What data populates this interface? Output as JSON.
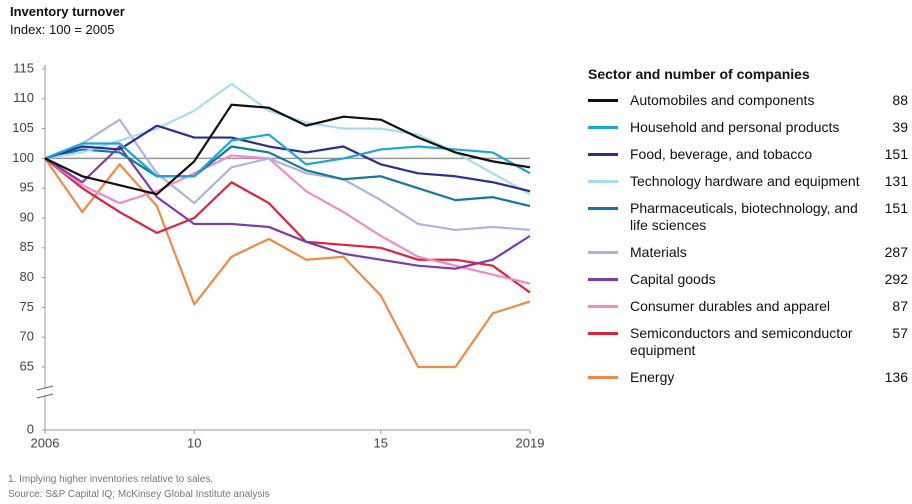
{
  "chart_data": {
    "type": "line",
    "title": "Inventory turnover",
    "subtitle": "Index: 100 = 2005",
    "legend_title": "Sector and number of companies",
    "x": [
      2006,
      2007,
      2008,
      2009,
      2010,
      2011,
      2012,
      2013,
      2014,
      2015,
      2016,
      2017,
      2018,
      2019
    ],
    "xlim": [
      2006,
      2019
    ],
    "xticks": [
      2006,
      {
        "value": 2010,
        "label": "10"
      },
      {
        "value": 2015,
        "label": "15"
      },
      2019
    ],
    "ylim": [
      0,
      115
    ],
    "axis_break": [
      0,
      65
    ],
    "yticks": [
      0,
      65,
      70,
      75,
      80,
      85,
      90,
      95,
      100,
      105,
      110,
      115
    ],
    "reference_line": 100,
    "series": [
      {
        "name": "Automobiles and components",
        "companies": "88",
        "color": "#111111",
        "values": [
          100,
          97,
          95.5,
          94,
          99.5,
          109,
          108.5,
          105.5,
          107,
          106.5,
          103.5,
          101,
          99.5,
          98.5
        ]
      },
      {
        "name": "Household and personal products",
        "companies": "39",
        "color": "#1aa6d9",
        "values": [
          100,
          102.5,
          102.5,
          97,
          97,
          103,
          104,
          99,
          100,
          101.5,
          102,
          101.5,
          101,
          97.5
        ]
      },
      {
        "name": "Food, beverage, and tobacco",
        "companies": "151",
        "color": "#2a2f8a",
        "values": [
          100,
          102,
          101.5,
          105.5,
          103.5,
          103.5,
          102,
          101,
          102,
          99,
          97.5,
          97,
          96,
          94.5
        ]
      },
      {
        "name": "Technology hardware and equipment",
        "companies": "131",
        "color": "#a8dcef",
        "values": [
          100,
          101,
          103,
          105,
          108,
          112.5,
          108,
          106,
          105,
          105,
          104,
          101,
          97.5,
          94
        ]
      },
      {
        "name": "Pharmaceuticals, biotechnology, and life sciences",
        "companies": "151",
        "color": "#12799c",
        "values": [
          100,
          101.5,
          101,
          97,
          97,
          102,
          101,
          98,
          96.5,
          97,
          95,
          93,
          93.5,
          92
        ]
      },
      {
        "name": "Materials",
        "companies": "287",
        "color": "#aeb4dc",
        "values": [
          100,
          102.5,
          106.5,
          97.5,
          92.5,
          98.5,
          100,
          97.5,
          96.5,
          93,
          89,
          88,
          88.5,
          88
        ]
      },
      {
        "name": "Capital goods",
        "companies": "292",
        "color": "#7d3aa8",
        "values": [
          100,
          96,
          102,
          93.5,
          89,
          89,
          88.5,
          86,
          84,
          83,
          82,
          81.5,
          83,
          87
        ]
      },
      {
        "name": "Consumer durables and apparel",
        "companies": "87",
        "color": "#f08bc6",
        "values": [
          100,
          95.5,
          92.5,
          94.5,
          97.5,
          100.5,
          100,
          94.5,
          91,
          87,
          83.5,
          82,
          80.5,
          79
        ]
      },
      {
        "name": "Semiconductors and semiconductor equipment",
        "companies": "57",
        "color": "#e0203c",
        "values": [
          100,
          95,
          91,
          87.5,
          90,
          96,
          92.5,
          86,
          85.5,
          85,
          83,
          83,
          82,
          77.5
        ]
      },
      {
        "name": "Energy",
        "companies": "136",
        "color": "#f08a42",
        "values": [
          100,
          91,
          99,
          92,
          75.5,
          83.5,
          86.5,
          83,
          83.5,
          77,
          65,
          65,
          74,
          76
        ]
      }
    ]
  },
  "footnotes": [
    "1. Implying higher inventories relative to sales.",
    "Source: S&P Capital IQ; McKinsey Global Institute analysis"
  ]
}
